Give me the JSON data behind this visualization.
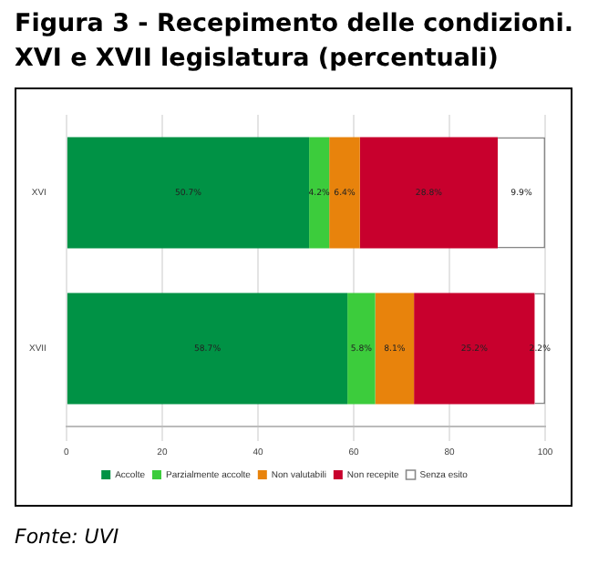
{
  "chart_data": {
    "type": "bar",
    "orientation": "horizontal",
    "stacked": true,
    "title": "Figura 3 - Recepimento delle condizioni. XVI e XVII legislatura (percentuali)",
    "categories": [
      "XVI",
      "XVII"
    ],
    "series": [
      {
        "name": "Accolte",
        "color": "#009245",
        "values": [
          50.7,
          58.7
        ],
        "value_labels": [
          "50.7%",
          "58.7%"
        ]
      },
      {
        "name": "Parzialmente accolte",
        "color": "#3ccc3c",
        "values": [
          4.2,
          5.8
        ],
        "value_labels": [
          "4.2%",
          "5.8%"
        ]
      },
      {
        "name": "Non valutabili",
        "color": "#e8830c",
        "values": [
          6.4,
          8.1
        ],
        "value_labels": [
          "6.4%",
          "8.1%"
        ]
      },
      {
        "name": "Non recepite",
        "color": "#c8002d",
        "values": [
          28.8,
          25.2
        ],
        "value_labels": [
          "28.8%",
          "25.2%"
        ]
      },
      {
        "name": "Senza esito",
        "color": "#ffffff",
        "values": [
          9.9,
          2.2
        ],
        "value_labels": [
          "9.9%",
          "2.2%"
        ]
      }
    ],
    "xlim": [
      0,
      100
    ],
    "xticks": [
      0,
      20,
      40,
      60,
      80,
      100
    ],
    "grid": "x",
    "legend": "bottom",
    "annotations": [
      "Fonte: UVI"
    ]
  }
}
